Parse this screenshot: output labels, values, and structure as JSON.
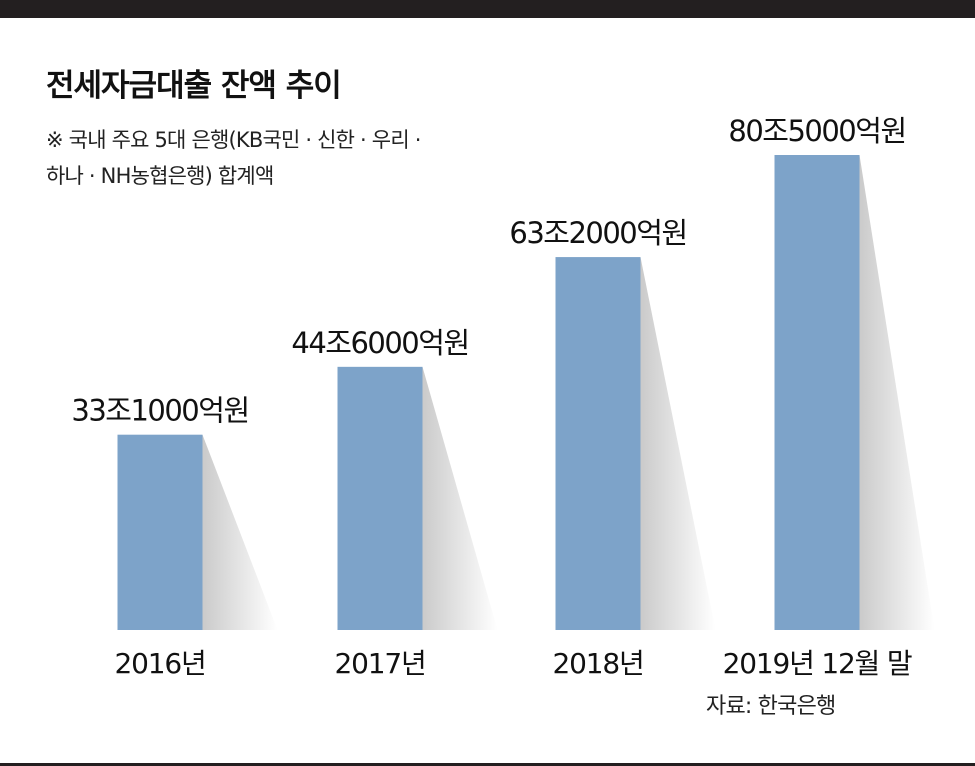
{
  "chart_data": {
    "type": "bar",
    "title": "전세자금대출 잔액 추이",
    "subtitle": [
      "※ 국내 주요 5대 은행(KB국민 · 신한 · 우리 ·",
      "하나 · NH농협은행) 합계액"
    ],
    "categories": [
      "2016년",
      "2017년",
      "2018년",
      "2019년 12월 말"
    ],
    "values": [
      33.1,
      44.6,
      63.2,
      80.5
    ],
    "value_unit": "조원",
    "data_labels": [
      "33조1000억원",
      "44조6000억원",
      "63조2000억원",
      "80조5000억원"
    ],
    "ylim": [
      0,
      80.5
    ],
    "grid": false,
    "legend": "none",
    "source": "자료: 한국은행"
  },
  "colors": {
    "bar": "#7da3c9",
    "shadow": "#8a8a8a",
    "rule": "#231f20"
  }
}
